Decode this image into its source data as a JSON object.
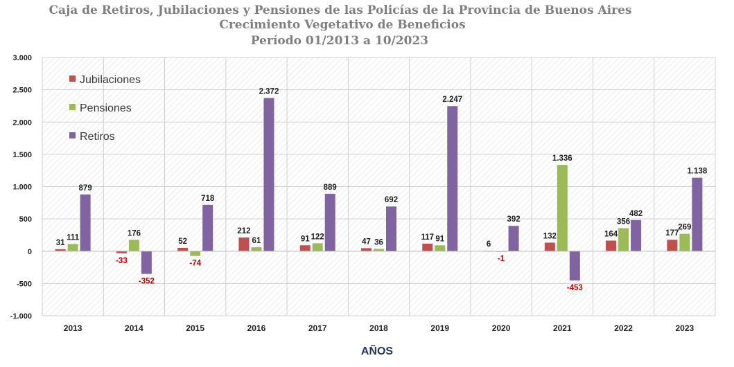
{
  "chart_data": {
    "type": "bar",
    "title": [
      "Caja de Retiros, Jubilaciones y Pensiones de las Policías de la Provincia de   Buenos Aires",
      "Crecimiento Vegetativo de Beneficios",
      "Período  01/2013 a  10/2023"
    ],
    "xlabel": "AÑOS",
    "ylabel": "",
    "ylim": [
      -1000,
      3000
    ],
    "yticks": [
      {
        "value": -1000,
        "label": "-1.000"
      },
      {
        "value": -500,
        "label": "-500"
      },
      {
        "value": 0,
        "label": "0"
      },
      {
        "value": 500,
        "label": "500"
      },
      {
        "value": 1000,
        "label": "1.000"
      },
      {
        "value": 1500,
        "label": "1.500"
      },
      {
        "value": 2000,
        "label": "2.000"
      },
      {
        "value": 2500,
        "label": "2.500"
      },
      {
        "value": 3000,
        "label": "3.000"
      }
    ],
    "categories": [
      "2013",
      "2014",
      "2015",
      "2016",
      "2017",
      "2018",
      "2019",
      "2020",
      "2021",
      "2022",
      "2023"
    ],
    "series": [
      {
        "name": "Jubilaciones",
        "color": "#c0504d",
        "values": [
          31,
          -33,
          52,
          212,
          91,
          47,
          117,
          6,
          132,
          164,
          177
        ],
        "labels": [
          "31",
          "-33",
          "52",
          "212",
          "91",
          "47",
          "117",
          "6",
          "132",
          "164",
          "177"
        ]
      },
      {
        "name": "Pensiones",
        "color": "#9bbb59",
        "values": [
          111,
          176,
          -74,
          61,
          122,
          36,
          91,
          -1,
          1336,
          356,
          269
        ],
        "labels": [
          "111",
          "176",
          "-74",
          "61",
          "122",
          "36",
          "91",
          "-1",
          "1.336",
          "356",
          "269"
        ]
      },
      {
        "name": "Retiros",
        "color": "#8064a2",
        "values": [
          879,
          -352,
          718,
          2372,
          889,
          692,
          2247,
          392,
          -453,
          482,
          1138
        ],
        "labels": [
          "879",
          "-352",
          "718",
          "2.372",
          "889",
          "692",
          "2.247",
          "392",
          "-453",
          "482",
          "1.138"
        ]
      }
    ],
    "grid": true,
    "legend_position": "top-left",
    "negative_label_color": "#c00000",
    "positive_label_color": "#1f1f1f"
  }
}
